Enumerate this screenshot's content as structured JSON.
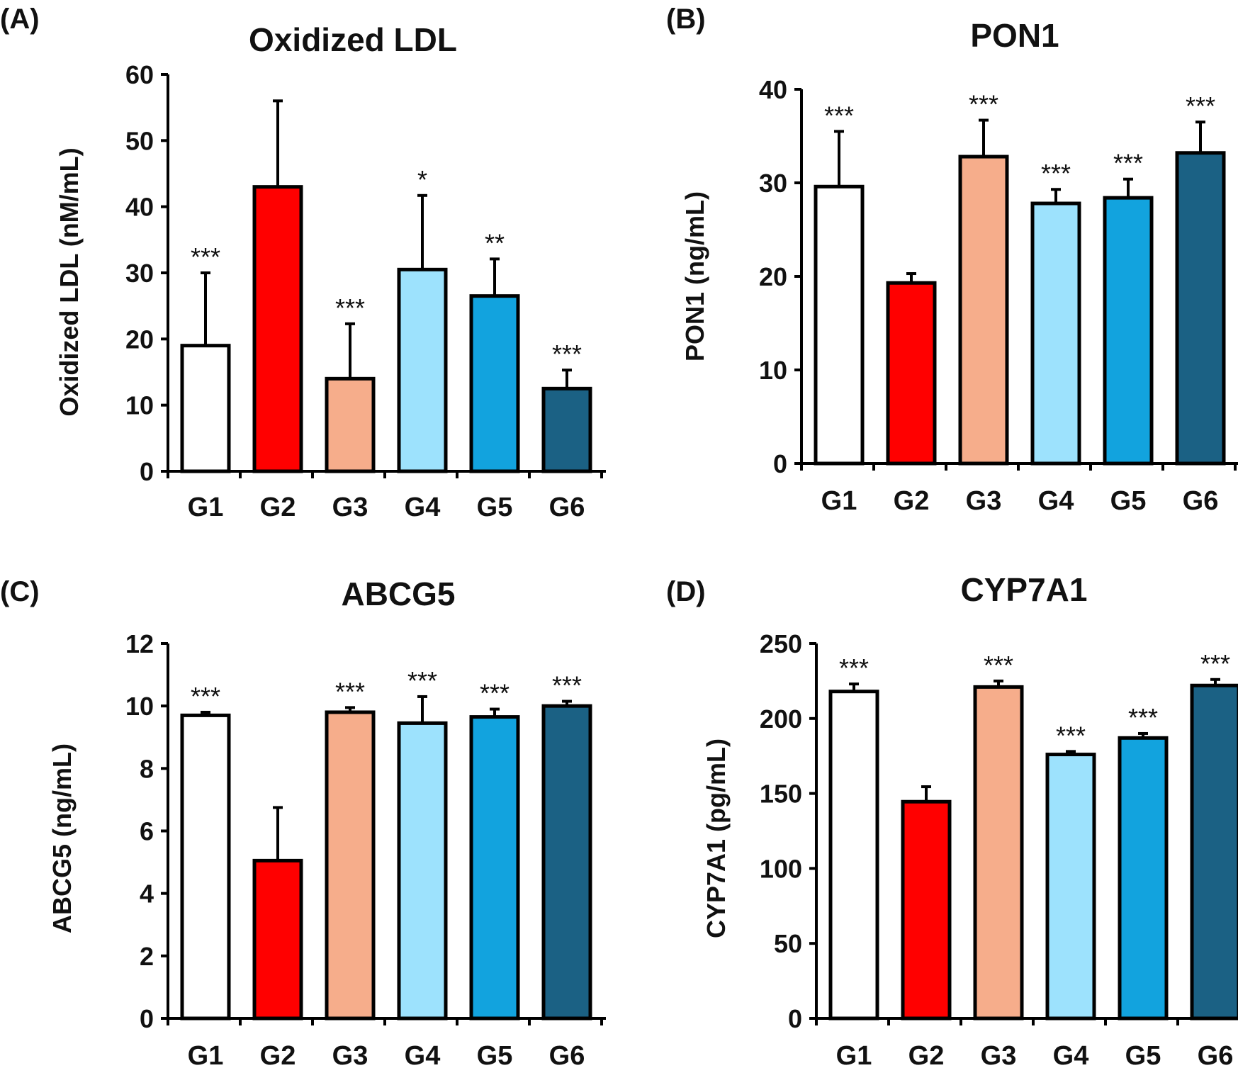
{
  "group_colors": [
    "#ffffff",
    "#ff0000",
    "#f6ad8b",
    "#9de2fd",
    "#12a3de",
    "#1b6184"
  ],
  "chart_data": [
    {
      "panel": "(A)",
      "type": "bar",
      "title": "Oxidized LDL",
      "xlabel": "",
      "ylabel": "Oxidized  LDL  (nM/mL)",
      "categories": [
        "G1",
        "G2",
        "G3",
        "G4",
        "G5",
        "G6"
      ],
      "values": [
        19,
        43,
        14,
        30.5,
        26.5,
        12.5
      ],
      "errors": [
        11,
        13,
        8.3,
        11.2,
        5.6,
        2.8
      ],
      "significance": [
        "***",
        "",
        "***",
        "*",
        "**",
        "***"
      ],
      "ylim": [
        0,
        60
      ],
      "yticks": [
        0,
        10,
        20,
        30,
        40,
        50,
        60
      ],
      "ytick_labels": [
        "0",
        "10",
        "20",
        "30",
        "40",
        "50",
        "60"
      ],
      "grid": false
    },
    {
      "panel": "(B)",
      "type": "bar",
      "title": "PON1",
      "xlabel": "",
      "ylabel": "PON1  (ng/mL)",
      "categories": [
        "G1",
        "G2",
        "G3",
        "G4",
        "G5",
        "G6"
      ],
      "values": [
        29.6,
        19.3,
        32.8,
        27.8,
        28.4,
        33.2
      ],
      "errors": [
        5.9,
        1.0,
        3.9,
        1.5,
        2.0,
        3.3
      ],
      "significance": [
        "***",
        "",
        "***",
        "***",
        "***",
        "***"
      ],
      "ylim": [
        0,
        40
      ],
      "yticks": [
        0,
        10,
        20,
        30,
        40
      ],
      "ytick_labels": [
        "0",
        "10",
        "20",
        "30",
        "40"
      ],
      "grid": false
    },
    {
      "panel": "(C)",
      "type": "bar",
      "title": "ABCG5",
      "xlabel": "",
      "ylabel": "ABCG5  (ng/mL)",
      "categories": [
        "G1",
        "G2",
        "G3",
        "G4",
        "G5",
        "G6"
      ],
      "values": [
        9.7,
        5.05,
        9.8,
        9.45,
        9.65,
        10.0
      ],
      "errors": [
        0.1,
        1.7,
        0.15,
        0.85,
        0.25,
        0.15
      ],
      "significance": [
        "***",
        "",
        "***",
        "***",
        "***",
        "***"
      ],
      "ylim": [
        0,
        12
      ],
      "yticks": [
        0,
        2,
        4,
        6,
        8,
        10,
        12
      ],
      "ytick_labels": [
        "0",
        "2",
        "4",
        "6",
        "8",
        "10",
        "12"
      ],
      "grid": false
    },
    {
      "panel": "(D)",
      "type": "bar",
      "title": "CYP7A1",
      "xlabel": "",
      "ylabel": "CYP7A1  (pg/mL)",
      "categories": [
        "G1",
        "G2",
        "G3",
        "G4",
        "G5",
        "G6"
      ],
      "values": [
        218,
        144.5,
        221,
        176,
        187,
        222
      ],
      "errors": [
        5,
        10,
        4,
        2,
        3,
        4
      ],
      "significance": [
        "***",
        "",
        "***",
        "***",
        "***",
        "***"
      ],
      "ylim": [
        0,
        250
      ],
      "yticks": [
        0,
        50,
        100,
        150,
        200,
        250
      ],
      "ytick_labels": [
        "0",
        "50",
        "100",
        "150",
        "200",
        "250"
      ],
      "grid": false
    }
  ]
}
